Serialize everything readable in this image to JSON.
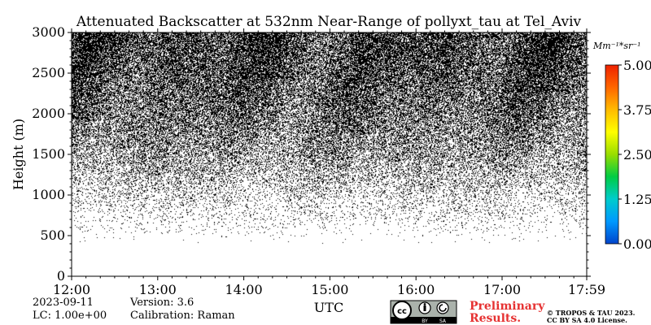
{
  "chart_data": {
    "type": "heatmap",
    "title": "Attenuated Backscatter at 532nm Near-Range of pollyxt_tau at Tel_Aviv",
    "xlabel": "UTC",
    "ylabel": "Height (m)",
    "x_ticks": [
      "12:00",
      "13:00",
      "14:00",
      "15:00",
      "16:00",
      "17:00",
      "17:59"
    ],
    "x_range_hours": [
      12.0,
      17.983
    ],
    "ylim": [
      0,
      3000
    ],
    "y_ticks": [
      0,
      500,
      1000,
      1500,
      2000,
      2500,
      3000
    ],
    "colorbar": {
      "unit": "Mm^-1*sr^-1",
      "unit_text": "Mm⁻¹*sr⁻¹",
      "range": [
        0.0,
        5.0
      ],
      "ticks": [
        "0.00",
        "1.25",
        "2.50",
        "3.75",
        "5.00"
      ],
      "colors": [
        "#0044cc",
        "#0099ff",
        "#00cccc",
        "#00cc44",
        "#99dd00",
        "#ffff00",
        "#ffbb00",
        "#ff6600",
        "#ee2200"
      ]
    },
    "noise_density_by_height": [
      {
        "height": 0,
        "fraction": 0.0
      },
      {
        "height": 400,
        "fraction": 0.0
      },
      {
        "height": 600,
        "fraction": 0.03
      },
      {
        "height": 1000,
        "fraction": 0.15
      },
      {
        "height": 1500,
        "fraction": 0.38
      },
      {
        "height": 2000,
        "fraction": 0.55
      },
      {
        "height": 2500,
        "fraction": 0.66
      },
      {
        "height": 3000,
        "fraction": 0.72
      }
    ]
  },
  "meta": {
    "date": "2023-09-11",
    "version": "Version: 3.6",
    "lc": "LC: 1.00e+00",
    "calibration": "Calibration: Raman"
  },
  "license": {
    "badge_cc": "cc",
    "badge_by": "BY",
    "badge_sa": "SA",
    "prelim_1": "Preliminary",
    "prelim_2": "Results.",
    "copyright_1": "© TROPOS & TAU 2023.",
    "copyright_2": "CC BY SA 4.0 License."
  }
}
